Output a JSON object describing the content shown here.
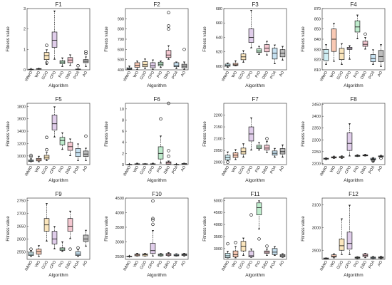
{
  "figure": {
    "categories": [
      "IMWO",
      "WO",
      "GGO",
      "CPO",
      "PIO",
      "DBO",
      "POA",
      "AO"
    ],
    "xlabel": "Algorithm",
    "ylabel": "Fitness value",
    "box_colors": [
      "#cfeff5",
      "#f9c9b4",
      "#fbe6bd",
      "#e0cdea",
      "#bfeccd",
      "#f4c7d0",
      "#c6e1f1",
      "#bdbdbd"
    ]
  },
  "chart_data": [
    {
      "type": "box",
      "title": "F1",
      "ylim": [
        0,
        3
      ],
      "yticks": [
        0,
        1,
        2,
        3
      ],
      "boxes": [
        {
          "min": 0.02,
          "q1": 0.02,
          "median": 0.02,
          "q3": 0.03,
          "max": 0.03,
          "outliers": []
        },
        {
          "min": 0.03,
          "q1": 0.04,
          "median": 0.05,
          "q3": 0.06,
          "max": 0.08,
          "outliers": []
        },
        {
          "min": 0.25,
          "q1": 0.5,
          "median": 0.7,
          "q3": 0.85,
          "max": 1.0,
          "outliers": [
            1.2,
            0.35
          ]
        },
        {
          "min": 0.5,
          "q1": 1.1,
          "median": 1.45,
          "q3": 1.85,
          "max": 2.9,
          "outliers": []
        },
        {
          "min": 0.15,
          "q1": 0.3,
          "median": 0.38,
          "q3": 0.45,
          "max": 0.6,
          "outliers": []
        },
        {
          "min": 0.2,
          "q1": 0.35,
          "median": 0.48,
          "q3": 0.6,
          "max": 0.75,
          "outliers": []
        },
        {
          "min": 0.02,
          "q1": 0.03,
          "median": 0.03,
          "q3": 0.04,
          "max": 0.05,
          "outliers": [
            0.2
          ]
        },
        {
          "min": 0.15,
          "q1": 0.35,
          "median": 0.42,
          "q3": 0.5,
          "max": 0.65,
          "outliers": [
            0.8,
            0.9
          ]
        }
      ]
    },
    {
      "type": "box",
      "title": "F2",
      "ylim": [
        400,
        1000
      ],
      "yticks": [
        400,
        500,
        600,
        700,
        800,
        900
      ],
      "boxes": [
        {
          "min": 400,
          "q1": 405,
          "median": 410,
          "q3": 420,
          "max": 440,
          "outliers": []
        },
        {
          "min": 400,
          "q1": 425,
          "median": 445,
          "q3": 470,
          "max": 490,
          "outliers": []
        },
        {
          "min": 410,
          "q1": 430,
          "median": 450,
          "q3": 480,
          "max": 510,
          "outliers": []
        },
        {
          "min": 400,
          "q1": 420,
          "median": 440,
          "q3": 470,
          "max": 500,
          "outliers": []
        },
        {
          "min": 420,
          "q1": 440,
          "median": 455,
          "q3": 475,
          "max": 490,
          "outliers": []
        },
        {
          "min": 500,
          "q1": 520,
          "median": 545,
          "q3": 590,
          "max": 640,
          "outliers": [
            800,
            830,
            960
          ]
        },
        {
          "min": 410,
          "q1": 430,
          "median": 440,
          "q3": 470,
          "max": 480,
          "outliers": []
        },
        {
          "min": 400,
          "q1": 420,
          "median": 435,
          "q3": 455,
          "max": 480,
          "outliers": [
            600
          ]
        }
      ]
    },
    {
      "type": "box",
      "title": "F3",
      "ylim": [
        595,
        680
      ],
      "yticks": [
        600,
        620,
        640,
        660,
        680
      ],
      "boxes": [
        {
          "min": 598,
          "q1": 600,
          "median": 601,
          "q3": 603,
          "max": 605,
          "outliers": []
        },
        {
          "min": 600,
          "q1": 601,
          "median": 602,
          "q3": 604,
          "max": 608,
          "outliers": []
        },
        {
          "min": 605,
          "q1": 609,
          "median": 613,
          "q3": 617,
          "max": 622,
          "outliers": []
        },
        {
          "min": 625,
          "q1": 633,
          "median": 640,
          "q3": 652,
          "max": 678,
          "outliers": []
        },
        {
          "min": 616,
          "q1": 619,
          "median": 621,
          "q3": 624,
          "max": 628,
          "outliers": []
        },
        {
          "min": 615,
          "q1": 620,
          "median": 625,
          "q3": 630,
          "max": 635,
          "outliers": []
        },
        {
          "min": 603,
          "q1": 610,
          "median": 618,
          "q3": 625,
          "max": 630,
          "outliers": []
        },
        {
          "min": 608,
          "q1": 613,
          "median": 618,
          "q3": 623,
          "max": 628,
          "outliers": []
        }
      ]
    },
    {
      "type": "box",
      "title": "F4",
      "ylim": [
        810,
        870
      ],
      "yticks": [
        810,
        820,
        830,
        840,
        850,
        860,
        870
      ],
      "boxes": [
        {
          "min": 815,
          "q1": 819,
          "median": 826,
          "q3": 830,
          "max": 835,
          "outliers": []
        },
        {
          "min": 818,
          "q1": 828,
          "median": 840,
          "q3": 850,
          "max": 856,
          "outliers": []
        },
        {
          "min": 815,
          "q1": 820,
          "median": 826,
          "q3": 831,
          "max": 836,
          "outliers": []
        },
        {
          "min": 820,
          "q1": 830,
          "median": 831,
          "q3": 832,
          "max": 834,
          "outliers": []
        },
        {
          "min": 840,
          "q1": 847,
          "median": 852,
          "q3": 858,
          "max": 864,
          "outliers": []
        },
        {
          "min": 830,
          "q1": 833,
          "median": 835,
          "q3": 838,
          "max": 842,
          "outliers": [
            845
          ]
        },
        {
          "min": 815,
          "q1": 818,
          "median": 821,
          "q3": 825,
          "max": 830,
          "outliers": []
        },
        {
          "min": 813,
          "q1": 818,
          "median": 823,
          "q3": 829,
          "max": 835,
          "outliers": []
        }
      ]
    },
    {
      "type": "box",
      "title": "F5",
      "ylim": [
        860,
        1850
      ],
      "yticks": [
        1000,
        1200,
        1400,
        1600,
        1800
      ],
      "boxes": [
        {
          "min": 900,
          "q1": 910,
          "median": 920,
          "q3": 935,
          "max": 960,
          "outliers": [
            990,
            1010
          ]
        },
        {
          "min": 900,
          "q1": 920,
          "median": 940,
          "q3": 960,
          "max": 1000,
          "outliers": []
        },
        {
          "min": 920,
          "q1": 950,
          "median": 980,
          "q3": 1010,
          "max": 1060,
          "outliers": [
            1100,
            1300
          ]
        },
        {
          "min": 1300,
          "q1": 1420,
          "median": 1520,
          "q3": 1660,
          "max": 1800,
          "outliers": []
        },
        {
          "min": 1100,
          "q1": 1180,
          "median": 1250,
          "q3": 1300,
          "max": 1380,
          "outliers": []
        },
        {
          "min": 1000,
          "q1": 1090,
          "median": 1150,
          "q3": 1220,
          "max": 1280,
          "outliers": []
        },
        {
          "min": 920,
          "q1": 990,
          "median": 1050,
          "q3": 1120,
          "max": 1200,
          "outliers": []
        },
        {
          "min": 920,
          "q1": 990,
          "median": 1030,
          "q3": 1080,
          "max": 1130,
          "outliers": [
            1320
          ]
        }
      ]
    },
    {
      "type": "box",
      "title": "F6",
      "ylim": [
        0,
        11
      ],
      "yticks": [
        0,
        2,
        4,
        6,
        8,
        10
      ],
      "boxes": [
        {
          "min": 0.0,
          "q1": 0.0,
          "median": 0.0,
          "q3": 0.05,
          "max": 0.1,
          "outliers": []
        },
        {
          "min": 0.0,
          "q1": 0.05,
          "median": 0.1,
          "q3": 0.15,
          "max": 0.3,
          "outliers": []
        },
        {
          "min": 0.0,
          "q1": 0.05,
          "median": 0.1,
          "q3": 0.15,
          "max": 0.2,
          "outliers": []
        },
        {
          "min": 0.0,
          "q1": 0.05,
          "median": 0.1,
          "q3": 0.15,
          "max": 0.3,
          "outliers": []
        },
        {
          "min": 0.2,
          "q1": 1.0,
          "median": 2.0,
          "q3": 3.2,
          "max": 5.2,
          "outliers": [
            8.2
          ]
        },
        {
          "min": 0.0,
          "q1": 0.1,
          "median": 0.3,
          "q3": 0.5,
          "max": 0.7,
          "outliers": [
            1.5,
            2.5,
            11.0
          ]
        },
        {
          "min": 0.0,
          "q1": 0.0,
          "median": 0.0,
          "q3": 0.05,
          "max": 0.1,
          "outliers": []
        },
        {
          "min": 0.0,
          "q1": 0.05,
          "median": 0.1,
          "q3": 0.2,
          "max": 0.3,
          "outliers": []
        }
      ]
    },
    {
      "type": "box",
      "title": "F7",
      "ylim": [
        1990,
        2250
      ],
      "yticks": [
        2000,
        2050,
        2100,
        2150,
        2200
      ],
      "boxes": [
        {
          "min": 2005,
          "q1": 2010,
          "median": 2020,
          "q3": 2030,
          "max": 2045,
          "outliers": [
            2000
          ]
        },
        {
          "min": 2010,
          "q1": 2020,
          "median": 2030,
          "q3": 2040,
          "max": 2055,
          "outliers": []
        },
        {
          "min": 2020,
          "q1": 2035,
          "median": 2045,
          "q3": 2060,
          "max": 2080,
          "outliers": []
        },
        {
          "min": 2050,
          "q1": 2090,
          "median": 2120,
          "q3": 2150,
          "max": 2190,
          "outliers": []
        },
        {
          "min": 2050,
          "q1": 2058,
          "median": 2065,
          "q3": 2072,
          "max": 2085,
          "outliers": []
        },
        {
          "min": 2040,
          "q1": 2052,
          "median": 2060,
          "q3": 2072,
          "max": 2090,
          "outliers": [
            2100
          ]
        },
        {
          "min": 2020,
          "q1": 2030,
          "median": 2038,
          "q3": 2048,
          "max": 2060,
          "outliers": []
        },
        {
          "min": 2020,
          "q1": 2035,
          "median": 2045,
          "q3": 2058,
          "max": 2075,
          "outliers": []
        }
      ]
    },
    {
      "type": "box",
      "title": "F8",
      "ylim": [
        2195,
        2455
      ],
      "yticks": [
        2200,
        2250,
        2300,
        2350,
        2400,
        2450
      ],
      "boxes": [
        {
          "min": 2215,
          "q1": 2218,
          "median": 2220,
          "q3": 2222,
          "max": 2225,
          "outliers": []
        },
        {
          "min": 2220,
          "q1": 2223,
          "median": 2225,
          "q3": 2228,
          "max": 2232,
          "outliers": []
        },
        {
          "min": 2220,
          "q1": 2224,
          "median": 2226,
          "q3": 2229,
          "max": 2233,
          "outliers": []
        },
        {
          "min": 2230,
          "q1": 2255,
          "median": 2285,
          "q3": 2330,
          "max": 2370,
          "outliers": []
        },
        {
          "min": 2228,
          "q1": 2230,
          "median": 2232,
          "q3": 2234,
          "max": 2238,
          "outliers": []
        },
        {
          "min": 2230,
          "q1": 2232,
          "median": 2234,
          "q3": 2236,
          "max": 2240,
          "outliers": []
        },
        {
          "min": 2205,
          "q1": 2214,
          "median": 2218,
          "q3": 2222,
          "max": 2226,
          "outliers": [
            2210,
            2215
          ]
        },
        {
          "min": 2225,
          "q1": 2228,
          "median": 2230,
          "q3": 2232,
          "max": 2236,
          "outliers": [
            2222
          ]
        }
      ]
    },
    {
      "type": "box",
      "title": "F9",
      "ylim": [
        2520,
        2760
      ],
      "yticks": [
        2550,
        2600,
        2650,
        2700,
        2750
      ],
      "boxes": [
        {
          "min": 2530,
          "q1": 2535,
          "median": 2540,
          "q3": 2548,
          "max": 2555,
          "outliers": [
            2560
          ]
        },
        {
          "min": 2530,
          "q1": 2540,
          "median": 2550,
          "q3": 2560,
          "max": 2575,
          "outliers": []
        },
        {
          "min": 2590,
          "q1": 2630,
          "median": 2655,
          "q3": 2680,
          "max": 2740,
          "outliers": []
        },
        {
          "min": 2560,
          "q1": 2580,
          "median": 2600,
          "q3": 2630,
          "max": 2650,
          "outliers": []
        },
        {
          "min": 2550,
          "q1": 2555,
          "median": 2560,
          "q3": 2565,
          "max": 2590,
          "outliers": []
        },
        {
          "min": 2600,
          "q1": 2630,
          "median": 2650,
          "q3": 2680,
          "max": 2710,
          "outliers": [
            2560
          ]
        },
        {
          "min": 2530,
          "q1": 2535,
          "median": 2540,
          "q3": 2550,
          "max": 2560,
          "outliers": [
            2565
          ]
        },
        {
          "min": 2570,
          "q1": 2590,
          "median": 2600,
          "q3": 2615,
          "max": 2635,
          "outliers": []
        }
      ]
    },
    {
      "type": "box",
      "title": "F10",
      "ylim": [
        2400,
        4500
      ],
      "yticks": [
        2500,
        3000,
        3500,
        4000,
        4500
      ],
      "boxes": [
        {
          "min": 2500,
          "q1": 2500,
          "median": 2500,
          "q3": 2505,
          "max": 2510,
          "outliers": []
        },
        {
          "min": 2500,
          "q1": 2520,
          "median": 2550,
          "q3": 2580,
          "max": 2620,
          "outliers": []
        },
        {
          "min": 2500,
          "q1": 2520,
          "median": 2560,
          "q3": 2590,
          "max": 2620,
          "outliers": []
        },
        {
          "min": 2500,
          "q1": 2600,
          "median": 2700,
          "q3": 2950,
          "max": 3400,
          "outliers": [
            3600,
            3750,
            3800,
            4400
          ]
        },
        {
          "min": 2500,
          "q1": 2520,
          "median": 2550,
          "q3": 2580,
          "max": 2610,
          "outliers": []
        },
        {
          "min": 2500,
          "q1": 2530,
          "median": 2570,
          "q3": 2600,
          "max": 2640,
          "outliers": []
        },
        {
          "min": 2500,
          "q1": 2520,
          "median": 2540,
          "q3": 2570,
          "max": 2600,
          "outliers": []
        },
        {
          "min": 2500,
          "q1": 2530,
          "median": 2560,
          "q3": 2590,
          "max": 2620,
          "outliers": []
        }
      ]
    },
    {
      "type": "box",
      "title": "F11",
      "ylim": [
        2550,
        5100
      ],
      "yticks": [
        3000,
        3500,
        4000,
        4500,
        5000
      ],
      "boxes": [
        {
          "min": 2600,
          "q1": 2620,
          "median": 2700,
          "q3": 2800,
          "max": 2900,
          "outliers": [
            3200
          ]
        },
        {
          "min": 2600,
          "q1": 2650,
          "median": 2750,
          "q3": 2900,
          "max": 3100,
          "outliers": [
            3250
          ]
        },
        {
          "min": 2700,
          "q1": 2900,
          "median": 3100,
          "q3": 3300,
          "max": 3450,
          "outliers": []
        },
        {
          "min": 2620,
          "q1": 2650,
          "median": 2700,
          "q3": 2900,
          "max": 3000,
          "outliers": [
            4400
          ]
        },
        {
          "min": 3800,
          "q1": 4400,
          "median": 4700,
          "q3": 4900,
          "max": 5000,
          "outliers": [
            3400
          ]
        },
        {
          "min": 2700,
          "q1": 2800,
          "median": 2850,
          "q3": 2900,
          "max": 3000,
          "outliers": [
            3100
          ]
        },
        {
          "min": 2700,
          "q1": 2750,
          "median": 2850,
          "q3": 3000,
          "max": 3100,
          "outliers": []
        },
        {
          "min": 2620,
          "q1": 2650,
          "median": 2700,
          "q3": 2750,
          "max": 2800,
          "outliers": []
        }
      ]
    },
    {
      "type": "box",
      "title": "F12",
      "ylim": [
        2860,
        3130
      ],
      "yticks": [
        2900,
        3000,
        3100
      ],
      "boxes": [
        {
          "min": 2860,
          "q1": 2862,
          "median": 2864,
          "q3": 2866,
          "max": 2868,
          "outliers": []
        },
        {
          "min": 2865,
          "q1": 2870,
          "median": 2874,
          "q3": 2880,
          "max": 2886,
          "outliers": []
        },
        {
          "min": 2880,
          "q1": 2900,
          "median": 2920,
          "q3": 2950,
          "max": 3040,
          "outliers": []
        },
        {
          "min": 2880,
          "q1": 2905,
          "median": 2930,
          "q3": 2980,
          "max": 3100,
          "outliers": []
        },
        {
          "min": 2862,
          "q1": 2865,
          "median": 2868,
          "q3": 2870,
          "max": 2873,
          "outliers": []
        },
        {
          "min": 2866,
          "q1": 2872,
          "median": 2878,
          "q3": 2884,
          "max": 2888,
          "outliers": []
        },
        {
          "min": 2862,
          "q1": 2864,
          "median": 2867,
          "q3": 2870,
          "max": 2874,
          "outliers": []
        },
        {
          "min": 2862,
          "q1": 2865,
          "median": 2868,
          "q3": 2871,
          "max": 2875,
          "outliers": []
        }
      ]
    }
  ]
}
